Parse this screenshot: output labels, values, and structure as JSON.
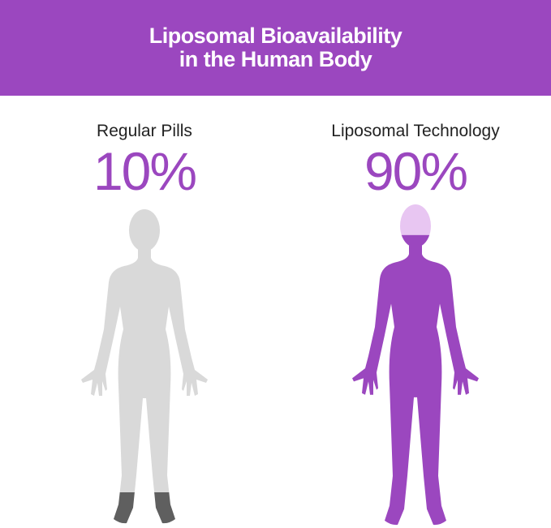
{
  "title_line1": "Liposomal Bioavailability",
  "title_line2": "in the Human Body",
  "colors": {
    "brand": "#9b47bf",
    "grey_body": "#d9d9d9",
    "grey_absorbed": "#5f5f5f",
    "lavender": "#e8c6f2"
  },
  "panels": [
    {
      "label": "Regular Pills",
      "percent": "10%",
      "absorbed_fraction": 0.1
    },
    {
      "label": "Liposomal Technology",
      "percent": "90%",
      "absorbed_fraction": 0.9
    }
  ]
}
